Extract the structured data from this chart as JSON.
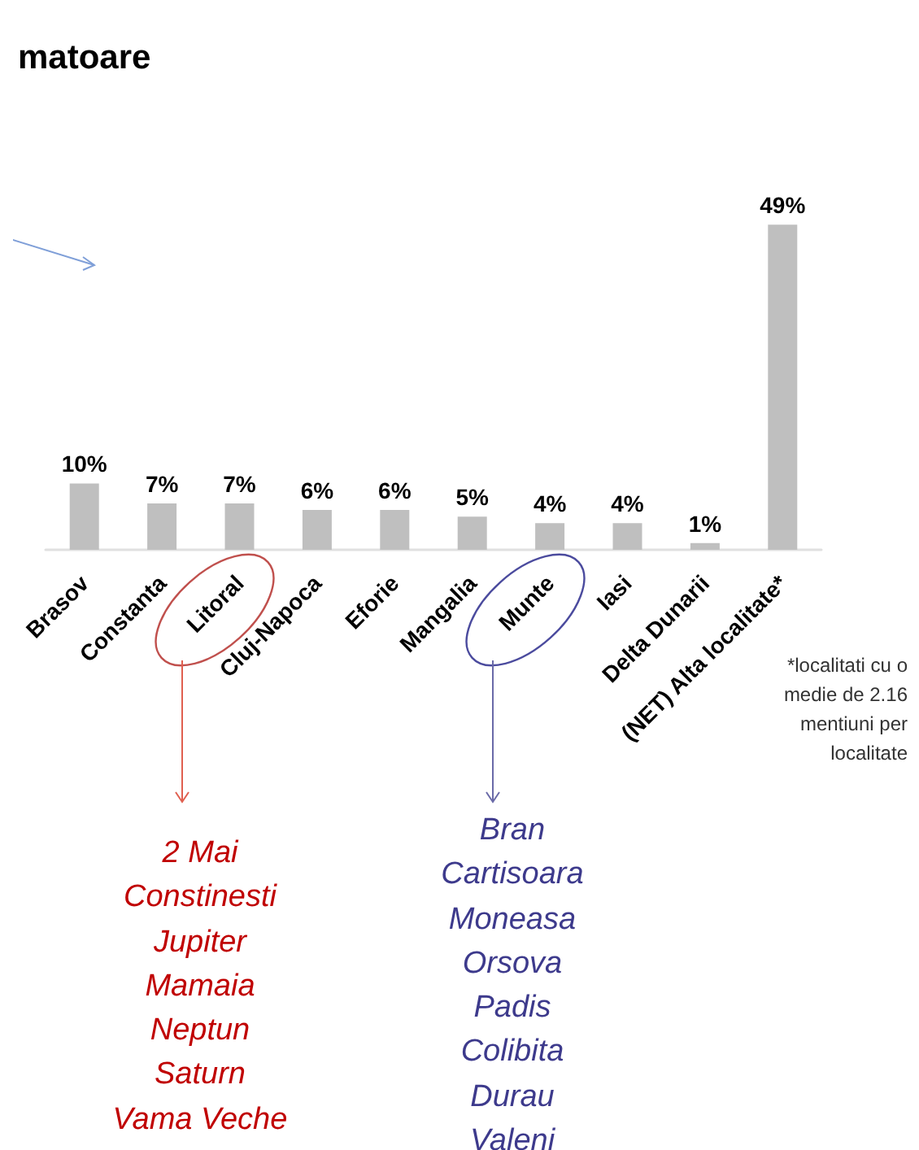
{
  "chart_data": {
    "type": "bar",
    "title": "matoare",
    "categories": [
      "Brasov",
      "Constanta",
      "Litoral",
      "Cluj-Napoca",
      "Eforie",
      "Mangalia",
      "Munte",
      "Iasi",
      "Delta Dunarii",
      "(NET) Alta localitate*"
    ],
    "values": [
      10,
      7,
      7,
      6,
      6,
      5,
      4,
      4,
      1,
      49
    ],
    "value_labels": [
      "10%",
      "7%",
      "7%",
      "6%",
      "6%",
      "5%",
      "4%",
      "4%",
      "1%",
      "49%"
    ],
    "color": "#bfbfbf",
    "grid": false,
    "annotations": [
      "*localitati cu o\nmedie de 2.16\nmentiuni per\nlocalitate",
      "2 Mai\nConstinesti\nJupiter\nMamaia\nNeptun\nSaturn\nVama Veche",
      "Bran\nCartisoara\nMoneasa\nOrsova\nPadis\nColibita\nDurau\nValeni"
    ]
  }
}
